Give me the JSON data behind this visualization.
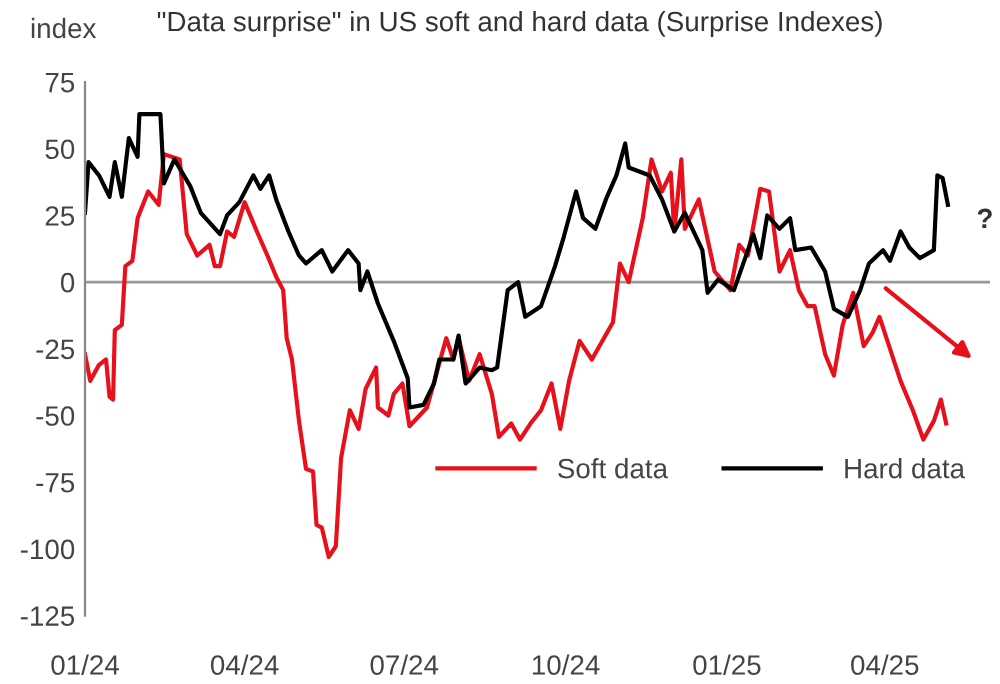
{
  "chart_data": {
    "type": "line",
    "title": "\"Data surprise\" in US soft and hard data (Surprise Indexes)",
    "ylabel": "index",
    "ylim": [
      -125,
      75
    ],
    "yticks": [
      -125,
      -100,
      -75,
      -50,
      -25,
      0,
      25,
      50,
      75
    ],
    "xlim": [
      "2024-01-01",
      "2025-05-31"
    ],
    "xticks": [
      {
        "value": "2024-01-01",
        "label": "01/24"
      },
      {
        "value": "2024-04-01",
        "label": "04/24"
      },
      {
        "value": "2024-07-01",
        "label": "07/24"
      },
      {
        "value": "2024-10-01",
        "label": "10/24"
      },
      {
        "value": "2025-01-01",
        "label": "01/25"
      },
      {
        "value": "2025-04-01",
        "label": "04/25"
      }
    ],
    "grid": false,
    "legend": "bottom right",
    "marker": "none",
    "line_style": "solid",
    "ref_lines": [
      {
        "axis": "y",
        "value": 0,
        "color": "#999999"
      }
    ],
    "annotations": [
      "?"
    ],
    "series": [
      {
        "name": "Soft data",
        "color": "#e8101a",
        "x": [
          "2024-01-01",
          "2024-01-04",
          "2024-01-09",
          "2024-01-13",
          "2024-01-15",
          "2024-01-17",
          "2024-01-18",
          "2024-01-22",
          "2024-01-24",
          "2024-01-28",
          "2024-01-31",
          "2024-02-06",
          "2024-02-12",
          "2024-02-15",
          "2024-02-24",
          "2024-02-28",
          "2024-03-05",
          "2024-03-12",
          "2024-03-15",
          "2024-03-18",
          "2024-03-22",
          "2024-03-26",
          "2024-04-01",
          "2024-04-08",
          "2024-04-14",
          "2024-04-19",
          "2024-04-23",
          "2024-04-25",
          "2024-04-28",
          "2024-05-02",
          "2024-05-06",
          "2024-05-10",
          "2024-05-12",
          "2024-05-15",
          "2024-05-19",
          "2024-05-23",
          "2024-05-26",
          "2024-05-31",
          "2024-06-05",
          "2024-06-09",
          "2024-06-15",
          "2024-06-16",
          "2024-06-22",
          "2024-06-25",
          "2024-06-30",
          "2024-07-04",
          "2024-07-14",
          "2024-07-25",
          "2024-07-29",
          "2024-08-01",
          "2024-08-07",
          "2024-08-13",
          "2024-08-20",
          "2024-08-24",
          "2024-08-31",
          "2024-09-05",
          "2024-09-11",
          "2024-09-17",
          "2024-09-23",
          "2024-09-28",
          "2024-10-03",
          "2024-10-09",
          "2024-10-16",
          "2024-10-28",
          "2024-11-01",
          "2024-11-06",
          "2024-11-14",
          "2024-11-19",
          "2024-11-25",
          "2024-11-30",
          "2024-12-02",
          "2024-12-06",
          "2024-12-08",
          "2024-12-16",
          "2024-12-25",
          "2025-01-03",
          "2025-01-08",
          "2025-01-13",
          "2025-01-20",
          "2025-01-25",
          "2025-01-31",
          "2025-02-06",
          "2025-02-11",
          "2025-02-16",
          "2025-02-20",
          "2025-02-26",
          "2025-03-03",
          "2025-03-08",
          "2025-03-14",
          "2025-03-20",
          "2025-03-25",
          "2025-03-29",
          "2025-04-04",
          "2025-04-10",
          "2025-04-17",
          "2025-04-23",
          "2025-04-29",
          "2025-05-03",
          "2025-05-06"
        ],
        "values": [
          -27,
          -37,
          -31,
          -29,
          -43,
          -44,
          -18,
          -16,
          6,
          8,
          24,
          34,
          29,
          48,
          46,
          18,
          10,
          14,
          6,
          6,
          19,
          17,
          30,
          19,
          10,
          2,
          -3,
          -21,
          -29,
          -52,
          -70,
          -71,
          -91,
          -92,
          -103,
          -99,
          -66,
          -48,
          -55,
          -40,
          -32,
          -47,
          -50,
          -42,
          -38,
          -54,
          -47,
          -21,
          -29,
          -21,
          -37,
          -27,
          -42,
          -58,
          -53,
          -59,
          -53,
          -48,
          -38,
          -55,
          -37,
          -22,
          -29,
          -15,
          7,
          0,
          24,
          46,
          34,
          41,
          19,
          46,
          20,
          31,
          4,
          -3,
          14,
          10,
          35,
          34,
          4,
          12,
          -3,
          -9,
          -9,
          -27,
          -35,
          -16,
          -4,
          -24,
          -19,
          -13,
          -25,
          -37,
          -48,
          -59,
          -52,
          -44,
          -53
        ]
      },
      {
        "name": "Hard data",
        "color": "#000000",
        "x": [
          "2024-01-01",
          "2024-01-03",
          "2024-01-09",
          "2024-01-15",
          "2024-01-18",
          "2024-01-22",
          "2024-01-26",
          "2024-01-31",
          "2024-02-01",
          "2024-02-13",
          "2024-02-15",
          "2024-02-21",
          "2024-03-01",
          "2024-03-07",
          "2024-03-18",
          "2024-03-22",
          "2024-03-29",
          "2024-04-06",
          "2024-04-10",
          "2024-04-15",
          "2024-04-19",
          "2024-04-26",
          "2024-05-02",
          "2024-05-06",
          "2024-05-15",
          "2024-05-21",
          "2024-05-30",
          "2024-06-05",
          "2024-06-06",
          "2024-06-10",
          "2024-06-16",
          "2024-06-25",
          "2024-07-03",
          "2024-07-04",
          "2024-07-12",
          "2024-07-18",
          "2024-07-21",
          "2024-07-29",
          "2024-08-01",
          "2024-08-05",
          "2024-08-13",
          "2024-08-20",
          "2024-08-23",
          "2024-08-29",
          "2024-09-04",
          "2024-09-08",
          "2024-09-17",
          "2024-09-25",
          "2024-09-30",
          "2024-10-07",
          "2024-10-11",
          "2024-10-18",
          "2024-10-24",
          "2024-10-30",
          "2024-11-04",
          "2024-11-06",
          "2024-11-18",
          "2024-11-25",
          "2024-12-02",
          "2024-12-08",
          "2024-12-18",
          "2024-12-21",
          "2024-12-27",
          "2025-01-05",
          "2025-01-13",
          "2025-01-16",
          "2025-01-20",
          "2025-01-24",
          "2025-01-31",
          "2025-02-06",
          "2025-02-09",
          "2025-02-18",
          "2025-02-26",
          "2025-03-03",
          "2025-03-11",
          "2025-03-18",
          "2025-03-23",
          "2025-03-31",
          "2025-04-04",
          "2025-04-10",
          "2025-04-15",
          "2025-04-21",
          "2025-04-29",
          "2025-05-01",
          "2025-05-04",
          "2025-05-07"
        ],
        "values": [
          26,
          45,
          40,
          32,
          45,
          32,
          54,
          47,
          63,
          63,
          37,
          46,
          36,
          26,
          18,
          25,
          30,
          40,
          35,
          40,
          31,
          19,
          10,
          7,
          12,
          4,
          12,
          7,
          -3,
          4,
          -8,
          -22,
          -36,
          -47,
          -46,
          -38,
          -29,
          -29,
          -20,
          -38,
          -32,
          -33,
          -32,
          -3,
          0,
          -13,
          -9,
          6,
          17,
          34,
          24,
          20,
          31,
          40,
          52,
          43,
          40,
          31,
          19,
          26,
          12,
          -4,
          1,
          -3,
          12,
          18,
          9,
          25,
          20,
          24,
          12,
          13,
          4,
          -10,
          -13,
          -3,
          7,
          12,
          8,
          19,
          13,
          9,
          12,
          40,
          39,
          29
        ]
      }
    ]
  }
}
